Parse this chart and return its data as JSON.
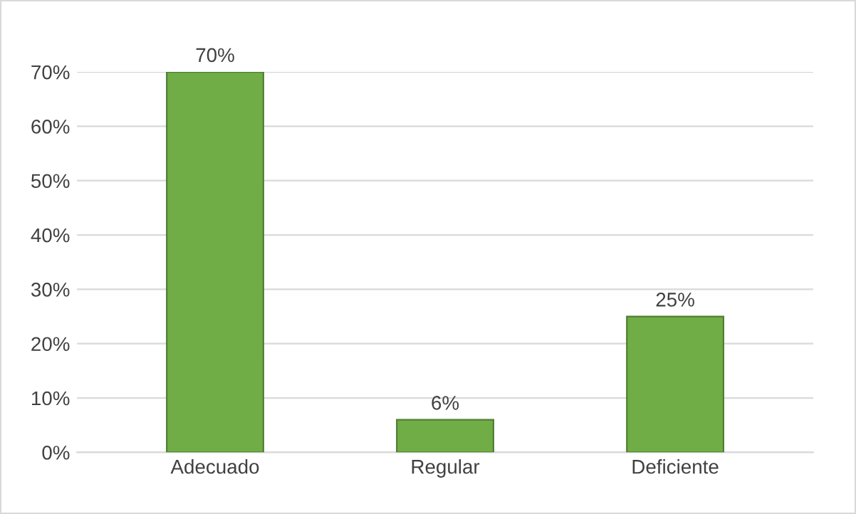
{
  "chart_data": {
    "type": "bar",
    "categories": [
      "Adecuado",
      "Regular",
      "Deficiente"
    ],
    "values": [
      70,
      6,
      25
    ],
    "value_labels": [
      "70%",
      "6%",
      "25%"
    ],
    "color": "#70ad47",
    "ylim": [
      0,
      70
    ],
    "yticks": [
      {
        "value": 0,
        "label": "0%"
      },
      {
        "value": 10,
        "label": "10%"
      },
      {
        "value": 20,
        "label": "20%"
      },
      {
        "value": 30,
        "label": "30%"
      },
      {
        "value": 40,
        "label": "40%"
      },
      {
        "value": 50,
        "label": "50%"
      },
      {
        "value": 60,
        "label": "60%"
      },
      {
        "value": 70,
        "label": "70%"
      }
    ],
    "grid": "y"
  }
}
